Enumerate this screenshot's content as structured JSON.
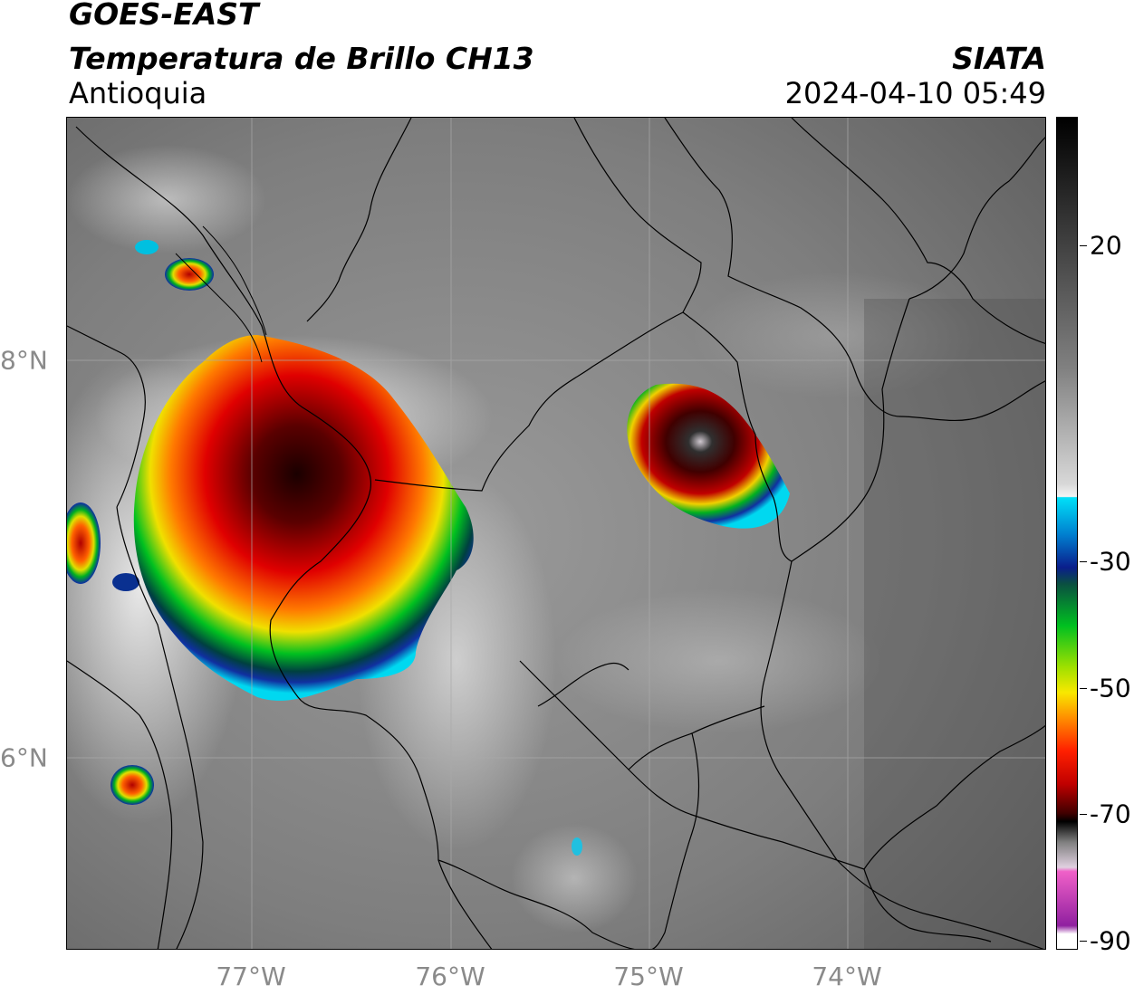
{
  "header": {
    "satellite": "GOES-EAST",
    "product": "Temperatura de Brillo CH13",
    "region": "Antioquia",
    "organization": "SIATA",
    "timestamp": "2024-04-10 05:49"
  },
  "map": {
    "longitude_labels": [
      "77°W",
      "76°W",
      "75°W",
      "74°W"
    ],
    "latitude_labels": [
      "8°N",
      "6°N"
    ]
  },
  "colorbar": {
    "tick_labels": [
      "20",
      "-30",
      "-50",
      "-70",
      "-90"
    ],
    "palette": {
      "cyan": "#00d8f0",
      "blue": "#0a1e8c",
      "green": "#00b020",
      "yellow": "#f0e800",
      "orange": "#ff8000",
      "red": "#e80000",
      "dark_red": "#500000",
      "black": "#000000",
      "magenta": "#c030b0"
    }
  }
}
